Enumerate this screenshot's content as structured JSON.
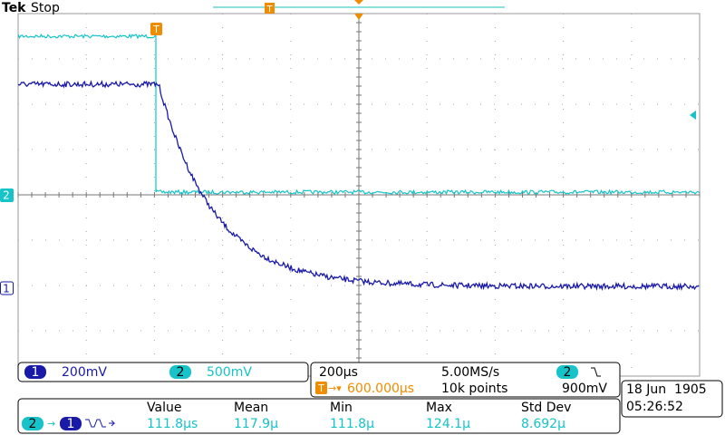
{
  "header": {
    "brand": "Tek",
    "status": "Stop"
  },
  "markers": {
    "channel_1": "1",
    "channel_2": "2",
    "trigger": "T"
  },
  "channels": [
    {
      "number": "1",
      "scale": "200mV"
    },
    {
      "number": "2",
      "scale": "500mV"
    }
  ],
  "timebase": {
    "scale": "200µs",
    "sample_rate": "5.00MS/s",
    "trigger_position": "600.000µs",
    "record_length": "10k points",
    "trigger_channel": "2",
    "trigger_level": "900mV"
  },
  "date": "18 Jun  1905",
  "time": "05:26:52",
  "measurement": {
    "source": "2",
    "target": "1",
    "columns": [
      "Value",
      "Mean",
      "Min",
      "Max",
      "Std Dev"
    ],
    "values": [
      "111.8µs",
      "117.9µ",
      "111.8µ",
      "124.1µ",
      "8.692µ"
    ]
  }
}
